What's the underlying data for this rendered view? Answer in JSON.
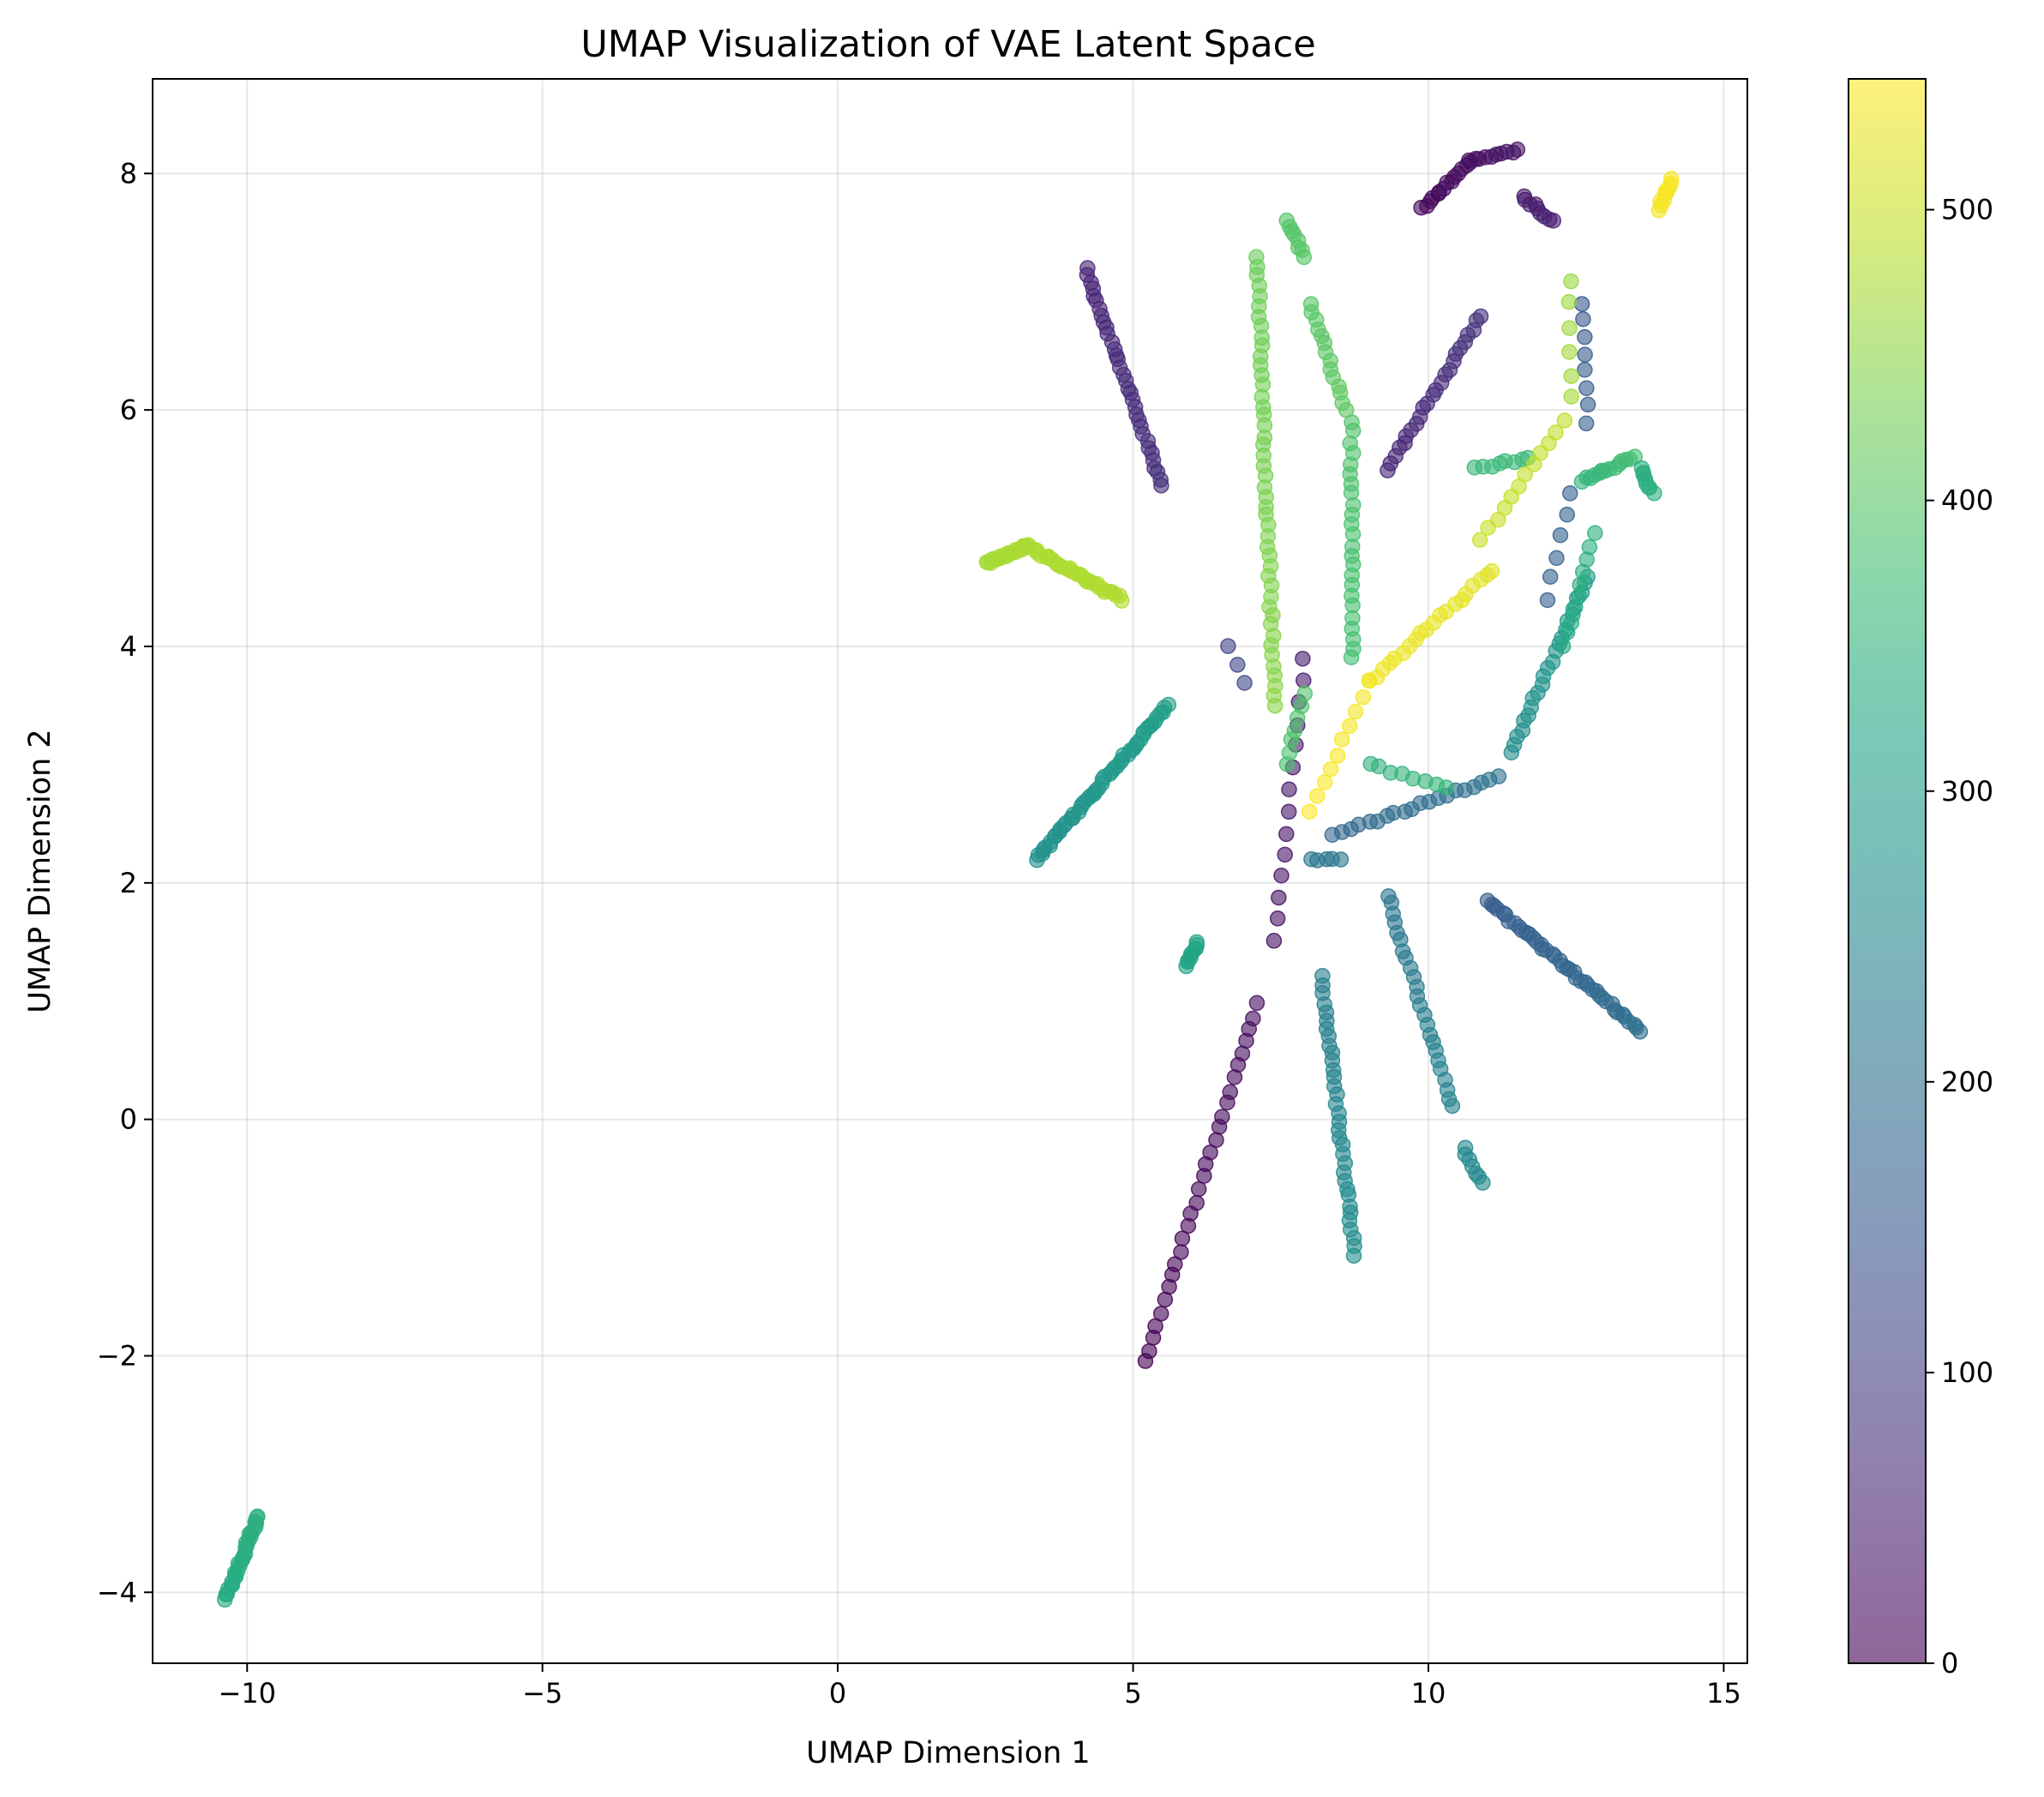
{
  "chart_data": {
    "type": "scatter",
    "title": "UMAP Visualization of VAE Latent Space",
    "xlabel": "UMAP Dimension 1",
    "ylabel": "UMAP Dimension 2",
    "xlim": [
      -11.6,
      15.4
    ],
    "ylim": [
      -4.6,
      8.8
    ],
    "xticks": [
      -10,
      -5,
      0,
      5,
      10,
      15
    ],
    "xtick_labels": [
      "−10",
      "−5",
      "0",
      "5",
      "10",
      "15"
    ],
    "yticks": [
      -4,
      -2,
      0,
      2,
      4,
      6,
      8
    ],
    "ytick_labels": [
      "−4",
      "−2",
      "0",
      "2",
      "4",
      "6",
      "8"
    ],
    "grid": true,
    "colormap": "viridis",
    "marker_alpha": 0.6,
    "colorbar": {
      "range": [
        0,
        545
      ],
      "ticks": [
        0,
        100,
        200,
        300,
        400,
        500
      ],
      "tick_labels": [
        "0",
        "100",
        "200",
        "300",
        "400",
        "500"
      ]
    },
    "series": [
      {
        "from": [
          5.2,
          -2.05,
          0
        ],
        "to": [
          7.1,
          0.97,
          20
        ],
        "n": 30
      },
      {
        "from": [
          7.4,
          1.5,
          25
        ],
        "to": [
          7.9,
          3.9,
          45
        ],
        "n": 14
      },
      {
        "from": [
          6.6,
          4.0,
          110
        ],
        "to": [
          6.9,
          3.7,
          115
        ],
        "n": 3
      },
      {
        "from": [
          4.2,
          7.2,
          55
        ],
        "to": [
          5.5,
          5.35,
          75
        ],
        "n": 34
      },
      {
        "from": [
          9.9,
          7.7,
          10
        ],
        "to": [
          10.7,
          8.1,
          20
        ],
        "n": 14
      },
      {
        "from": [
          10.7,
          8.1,
          20
        ],
        "to": [
          11.5,
          8.2,
          30
        ],
        "n": 10
      },
      {
        "from": [
          11.6,
          7.8,
          40
        ],
        "to": [
          12.1,
          7.6,
          48
        ],
        "n": 9
      },
      {
        "from": [
          9.3,
          5.5,
          55
        ],
        "to": [
          10.9,
          6.8,
          80
        ],
        "n": 24
      },
      {
        "from": [
          12.6,
          6.9,
          150
        ],
        "to": [
          12.7,
          5.9,
          165
        ],
        "n": 8
      },
      {
        "from": [
          12.0,
          4.4,
          165
        ],
        "to": [
          12.4,
          5.3,
          170
        ],
        "n": 6
      },
      {
        "from": [
          11.0,
          1.85,
          160
        ],
        "to": [
          13.6,
          0.75,
          195
        ],
        "n": 42
      },
      {
        "from": [
          8.4,
          2.4,
          180
        ],
        "to": [
          11.2,
          2.9,
          205
        ],
        "n": 20
      },
      {
        "from": [
          8.0,
          2.2,
          210
        ],
        "to": [
          8.5,
          2.2,
          215
        ],
        "n": 5
      },
      {
        "from": [
          9.3,
          1.9,
          210
        ],
        "to": [
          10.4,
          0.1,
          245
        ],
        "n": 24
      },
      {
        "from": [
          10.6,
          -0.25,
          250
        ],
        "to": [
          10.9,
          -0.55,
          255
        ],
        "n": 7
      },
      {
        "from": [
          8.2,
          1.2,
          230
        ],
        "to": [
          8.75,
          -1.15,
          265
        ],
        "n": 34
      },
      {
        "from": [
          11.4,
          3.1,
          260
        ],
        "to": [
          12.7,
          4.6,
          300
        ],
        "n": 24
      },
      {
        "from": [
          3.35,
          2.2,
          270
        ],
        "to": [
          5.6,
          3.5,
          305
        ],
        "n": 52
      },
      {
        "from": [
          5.9,
          1.3,
          315
        ],
        "to": [
          6.1,
          1.5,
          320
        ],
        "n": 10
      },
      {
        "from": [
          -10.35,
          -4.05,
          330
        ],
        "to": [
          -9.8,
          -3.35,
          345
        ],
        "n": 30
      },
      {
        "from": [
          9.0,
          3.0,
          350
        ],
        "to": [
          10.3,
          2.8,
          355
        ],
        "n": 8
      },
      {
        "from": [
          12.3,
          4.0,
          330
        ],
        "to": [
          12.8,
          4.95,
          345
        ],
        "n": 10
      },
      {
        "from": [
          10.8,
          5.5,
          360
        ],
        "to": [
          11.7,
          5.6,
          365
        ],
        "n": 8
      },
      {
        "from": [
          12.6,
          5.4,
          350
        ],
        "to": [
          13.5,
          5.6,
          380
        ],
        "n": 14
      },
      {
        "from": [
          13.6,
          5.5,
          340
        ],
        "to": [
          13.8,
          5.3,
          345
        ],
        "n": 8
      },
      {
        "from": [
          8.7,
          3.9,
          380
        ],
        "to": [
          8.7,
          5.9,
          392
        ],
        "n": 24
      },
      {
        "from": [
          7.6,
          3.0,
          385
        ],
        "to": [
          7.9,
          3.6,
          395
        ],
        "n": 7
      },
      {
        "from": [
          8.0,
          6.9,
          400
        ],
        "to": [
          8.6,
          6.0,
          410
        ],
        "n": 14
      },
      {
        "from": [
          7.6,
          7.6,
          395
        ],
        "to": [
          7.9,
          7.3,
          400
        ],
        "n": 8
      },
      {
        "from": [
          7.4,
          3.5,
          450
        ],
        "to": [
          7.1,
          7.3,
          420
        ],
        "n": 46
      },
      {
        "from": [
          2.5,
          4.7,
          470
        ],
        "to": [
          3.2,
          4.85,
          475
        ],
        "n": 20
      },
      {
        "from": [
          3.2,
          4.85,
          475
        ],
        "to": [
          4.8,
          4.4,
          480
        ],
        "n": 32
      },
      {
        "from": [
          8.0,
          2.6,
          545
        ],
        "to": [
          9.0,
          3.7,
          535
        ],
        "n": 10
      },
      {
        "from": [
          9.0,
          3.7,
          535
        ],
        "to": [
          11.1,
          4.65,
          520
        ],
        "n": 20
      },
      {
        "from": [
          10.9,
          4.9,
          500
        ],
        "to": [
          12.3,
          5.9,
          490
        ],
        "n": 12
      },
      {
        "from": [
          12.4,
          6.1,
          470
        ],
        "to": [
          12.4,
          7.1,
          460
        ],
        "n": 6
      },
      {
        "from": [
          13.9,
          7.7,
          535
        ],
        "to": [
          14.1,
          7.95,
          540
        ],
        "n": 10
      }
    ]
  }
}
